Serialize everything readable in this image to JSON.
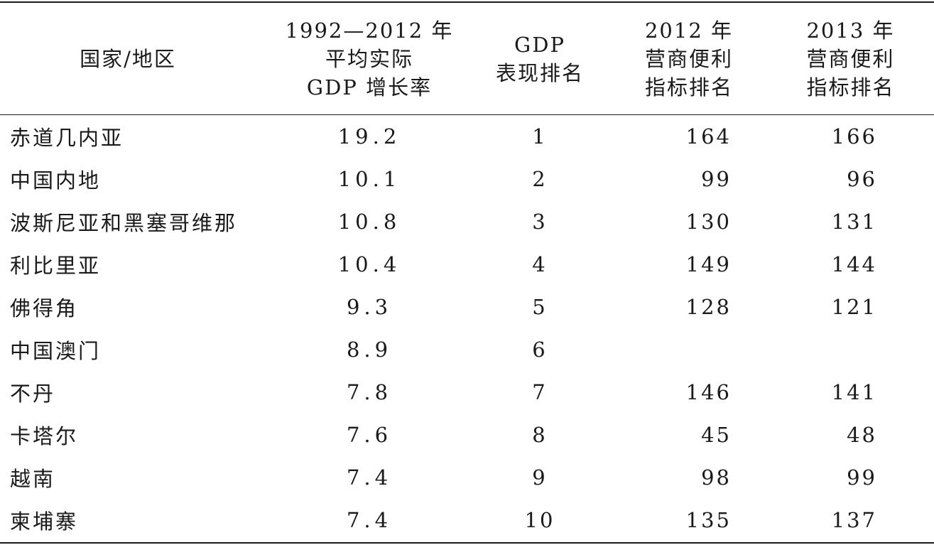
{
  "table": {
    "headers": [
      {
        "lines": [
          "国家/地区"
        ]
      },
      {
        "lines": [
          "1992—2012 年",
          "平均实际",
          "GDP 增长率"
        ]
      },
      {
        "lines": [
          "GDP",
          "表现排名"
        ]
      },
      {
        "lines": [
          "2012 年",
          "营商便利",
          "指标排名"
        ]
      },
      {
        "lines": [
          "2013 年",
          "营商便利",
          "指标排名"
        ]
      }
    ],
    "rows": [
      {
        "name": "赤道几内亚",
        "growth": "19.2",
        "rank": "1",
        "ease2012": "164",
        "ease2013": "166"
      },
      {
        "name": "中国内地",
        "growth": "10.1",
        "rank": "2",
        "ease2012": "99",
        "ease2013": "96"
      },
      {
        "name": "波斯尼亚和黑塞哥维那",
        "growth": "10.8",
        "rank": "3",
        "ease2012": "130",
        "ease2013": "131"
      },
      {
        "name": "利比里亚",
        "growth": "10.4",
        "rank": "4",
        "ease2012": "149",
        "ease2013": "144"
      },
      {
        "name": "佛得角",
        "growth": "9.3",
        "rank": "5",
        "ease2012": "128",
        "ease2013": "121"
      },
      {
        "name": "中国澳门",
        "growth": "8.9",
        "rank": "6",
        "ease2012": "",
        "ease2013": ""
      },
      {
        "name": "不丹",
        "growth": "7.8",
        "rank": "7",
        "ease2012": "146",
        "ease2013": "141"
      },
      {
        "name": "卡塔尔",
        "growth": "7.6",
        "rank": "8",
        "ease2012": "45",
        "ease2013": "48"
      },
      {
        "name": "越南",
        "growth": "7.4",
        "rank": "9",
        "ease2012": "98",
        "ease2013": "99"
      },
      {
        "name": "柬埔寨",
        "growth": "7.4",
        "rank": "10",
        "ease2012": "135",
        "ease2013": "137"
      }
    ]
  }
}
